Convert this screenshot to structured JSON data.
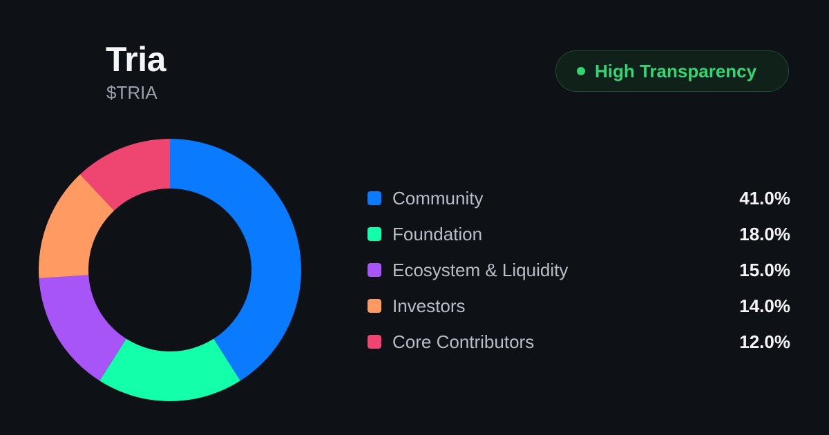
{
  "header": {
    "title": "Tria",
    "ticker": "$TRIA"
  },
  "badge": {
    "label": "High Transparency",
    "dot_color": "#2fd66e"
  },
  "chart_data": {
    "type": "pie",
    "categories": [
      "Community",
      "Foundation",
      "Ecosystem & Liquidity",
      "Investors",
      "Core Contributors"
    ],
    "values": [
      41.0,
      18.0,
      15.0,
      14.0,
      12.0
    ],
    "value_labels": [
      "41.0%",
      "18.0%",
      "15.0%",
      "14.0%",
      "12.0%"
    ],
    "colors": [
      "#0a7aff",
      "#14ffaa",
      "#a855f7",
      "#ff9a62",
      "#ef4571"
    ],
    "donut": true,
    "legend_placement": "right"
  }
}
